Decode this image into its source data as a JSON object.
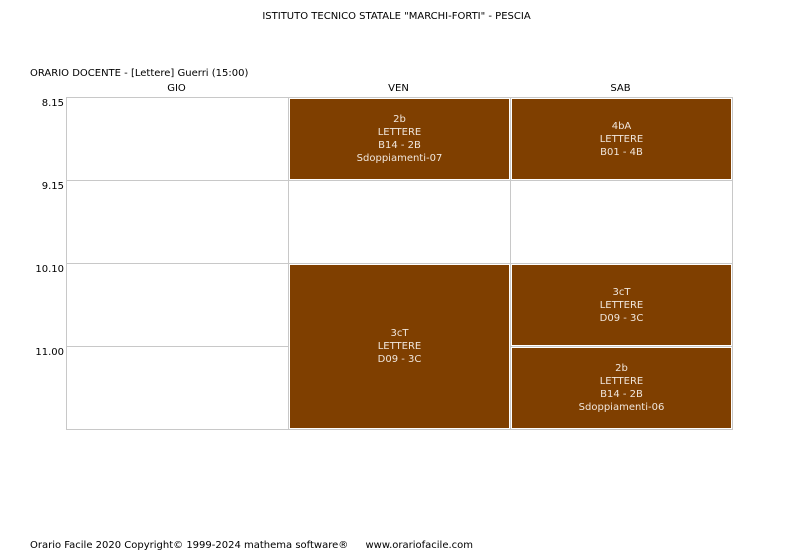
{
  "header": {
    "school": "ISTITUTO TECNICO STATALE \"MARCHI-FORTI\" - PESCIA",
    "docente_label": "ORARIO DOCENTE   -   [Lettere] Guerri  (15:00)"
  },
  "days": [
    "GIO",
    "VEN",
    "SAB"
  ],
  "times": [
    "8.15",
    "9.15",
    "10.10",
    "11.00"
  ],
  "lessons": [
    {
      "day": "VEN",
      "start": "8.15",
      "periods": 1,
      "class": "2b",
      "subject": "LETTERE",
      "room": "B14 - 2B",
      "note": "Sdoppiamenti-07"
    },
    {
      "day": "SAB",
      "start": "8.15",
      "periods": 1,
      "class": "4bA",
      "subject": "LETTERE",
      "room": "B01 - 4B",
      "note": ""
    },
    {
      "day": "VEN",
      "start": "10.10",
      "periods": 2,
      "class": "3cT",
      "subject": "LETTERE",
      "room": "D09 - 3C",
      "note": ""
    },
    {
      "day": "SAB",
      "start": "10.10",
      "periods": 1,
      "class": "3cT",
      "subject": "LETTERE",
      "room": "D09 - 3C",
      "note": ""
    },
    {
      "day": "SAB",
      "start": "11.00",
      "periods": 1,
      "class": "2b",
      "subject": "LETTERE",
      "room": "B14 - 2B",
      "note": "Sdoppiamenti-06"
    }
  ],
  "footer": {
    "copyright": "Orario Facile 2020  Copyright© 1999-2024 mathema software®",
    "url": "www.orariofacile.com"
  }
}
